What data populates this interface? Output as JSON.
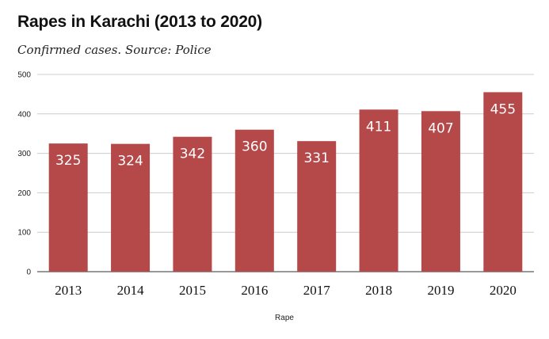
{
  "chart_data": {
    "type": "bar",
    "title": "Rapes in Karachi (2013 to 2020)",
    "subtitle": "Confirmed cases. Source: Police",
    "xlabel": "Rape",
    "ylabel": "",
    "categories": [
      "2013",
      "2014",
      "2015",
      "2016",
      "2017",
      "2018",
      "2019",
      "2020"
    ],
    "series": [
      {
        "values": [
          325,
          324,
          342,
          360,
          331,
          411,
          407,
          455
        ],
        "color": "#b5494a"
      }
    ],
    "ylim": [
      0,
      500
    ],
    "yticks": [
      0,
      100,
      200,
      300,
      400,
      500
    ],
    "grid": true,
    "legend": "none"
  }
}
